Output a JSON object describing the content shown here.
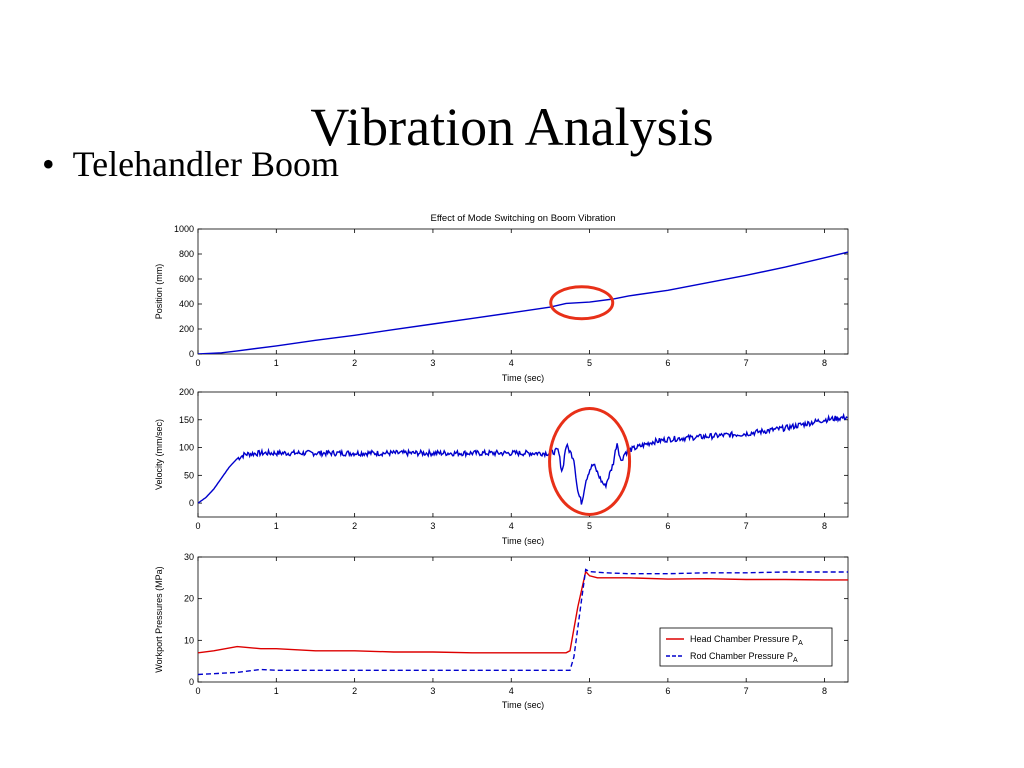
{
  "slide": {
    "title": "Vibration Analysis",
    "bullet": "Telehandler Boom"
  },
  "colors": {
    "series_blue": "#0000cc",
    "series_red": "#dd0000",
    "highlight_ellipse": "#e83018"
  },
  "chart_data": [
    {
      "type": "line",
      "title": "Effect of Mode Switching on Boom Vibration",
      "xlabel": "Time (sec)",
      "ylabel": "Position (mm)",
      "xlim": [
        0,
        8.3
      ],
      "ylim": [
        0,
        1000
      ],
      "xticks": [
        0,
        1,
        2,
        3,
        4,
        5,
        6,
        7,
        8
      ],
      "yticks": [
        0,
        200,
        400,
        600,
        800,
        1000
      ],
      "grid": false,
      "series": [
        {
          "color": "#0000cc",
          "x": [
            0,
            0.3,
            0.5,
            1,
            1.5,
            2,
            2.5,
            3,
            3.5,
            4,
            4.5,
            4.7,
            5,
            5.3,
            5.5,
            6,
            6.5,
            7,
            7.5,
            8,
            8.3
          ],
          "y": [
            0,
            10,
            25,
            65,
            110,
            150,
            195,
            240,
            285,
            330,
            375,
            405,
            415,
            440,
            465,
            510,
            570,
            630,
            695,
            770,
            815
          ]
        }
      ],
      "annotations": [
        {
          "shape": "ellipse",
          "color": "#e83018",
          "x": 4.9,
          "y": 410
        }
      ]
    },
    {
      "type": "line",
      "title": "",
      "xlabel": "Time (sec)",
      "ylabel": "Velocity (mm/sec)",
      "xlim": [
        0,
        8.3
      ],
      "ylim": [
        -25,
        200
      ],
      "xticks": [
        0,
        1,
        2,
        3,
        4,
        5,
        6,
        7,
        8
      ],
      "yticks": [
        0,
        50,
        100,
        150,
        200
      ],
      "grid": false,
      "series": [
        {
          "color": "#0000cc",
          "x": [
            0,
            0.1,
            0.2,
            0.3,
            0.4,
            0.5,
            0.6,
            0.8,
            1,
            1.5,
            2,
            2.5,
            3,
            3.5,
            4,
            4.5,
            4.6,
            4.65,
            4.7,
            4.8,
            4.85,
            4.9,
            4.95,
            5,
            5.05,
            5.1,
            5.15,
            5.2,
            5.25,
            5.3,
            5.35,
            5.4,
            5.45,
            5.5,
            5.6,
            5.8,
            6,
            6.5,
            7,
            7.5,
            8,
            8.3
          ],
          "y": [
            0,
            10,
            25,
            45,
            65,
            80,
            88,
            90,
            90,
            90,
            90,
            90,
            90,
            90,
            90,
            90,
            95,
            55,
            105,
            80,
            20,
            0,
            40,
            60,
            70,
            55,
            40,
            30,
            50,
            70,
            110,
            75,
            90,
            95,
            100,
            110,
            115,
            120,
            125,
            135,
            150,
            155
          ],
          "noise_amplitude": 5
        }
      ],
      "annotations": [
        {
          "shape": "ellipse",
          "color": "#e83018",
          "x": 5.0,
          "y": 75
        }
      ]
    },
    {
      "type": "line",
      "title": "",
      "xlabel": "Time (sec)",
      "ylabel": "Workport Pressures (MPa)",
      "xlim": [
        0,
        8.3
      ],
      "ylim": [
        0,
        30
      ],
      "xticks": [
        0,
        1,
        2,
        3,
        4,
        5,
        6,
        7,
        8
      ],
      "yticks": [
        0,
        10,
        20,
        30
      ],
      "grid": false,
      "legend_position": "lower-right",
      "series": [
        {
          "name": "Head Chamber Pressure P",
          "subscript": "A",
          "color": "#dd0000",
          "dash": "solid",
          "x": [
            0,
            0.2,
            0.5,
            0.8,
            1,
            1.5,
            2,
            2.5,
            3,
            3.5,
            4,
            4.5,
            4.7,
            4.75,
            4.85,
            4.95,
            5,
            5.1,
            5.3,
            5.5,
            6,
            6.5,
            7,
            7.5,
            8,
            8.3
          ],
          "y": [
            7,
            7.5,
            8.5,
            8,
            8,
            7.5,
            7.5,
            7.2,
            7.2,
            7,
            7,
            7,
            7,
            7.5,
            18,
            26.5,
            25.5,
            25,
            25,
            25,
            24.7,
            24.8,
            24.6,
            24.6,
            24.5,
            24.5
          ]
        },
        {
          "name": "Rod Chamber Pressure P",
          "subscript": "A",
          "color": "#0000cc",
          "dash": "dashed",
          "x": [
            0,
            0.5,
            0.8,
            1,
            1.5,
            2,
            2.5,
            3,
            3.5,
            4,
            4.5,
            4.75,
            4.8,
            4.9,
            4.95,
            5,
            5.2,
            5.5,
            6,
            6.5,
            7,
            7.5,
            8,
            8.3
          ],
          "y": [
            1.8,
            2.3,
            3,
            2.8,
            2.8,
            2.8,
            2.8,
            2.8,
            2.8,
            2.8,
            2.8,
            2.8,
            6,
            20,
            27,
            26.5,
            26.2,
            26,
            26,
            26.2,
            26.2,
            26.4,
            26.4,
            26.4
          ]
        }
      ]
    }
  ]
}
